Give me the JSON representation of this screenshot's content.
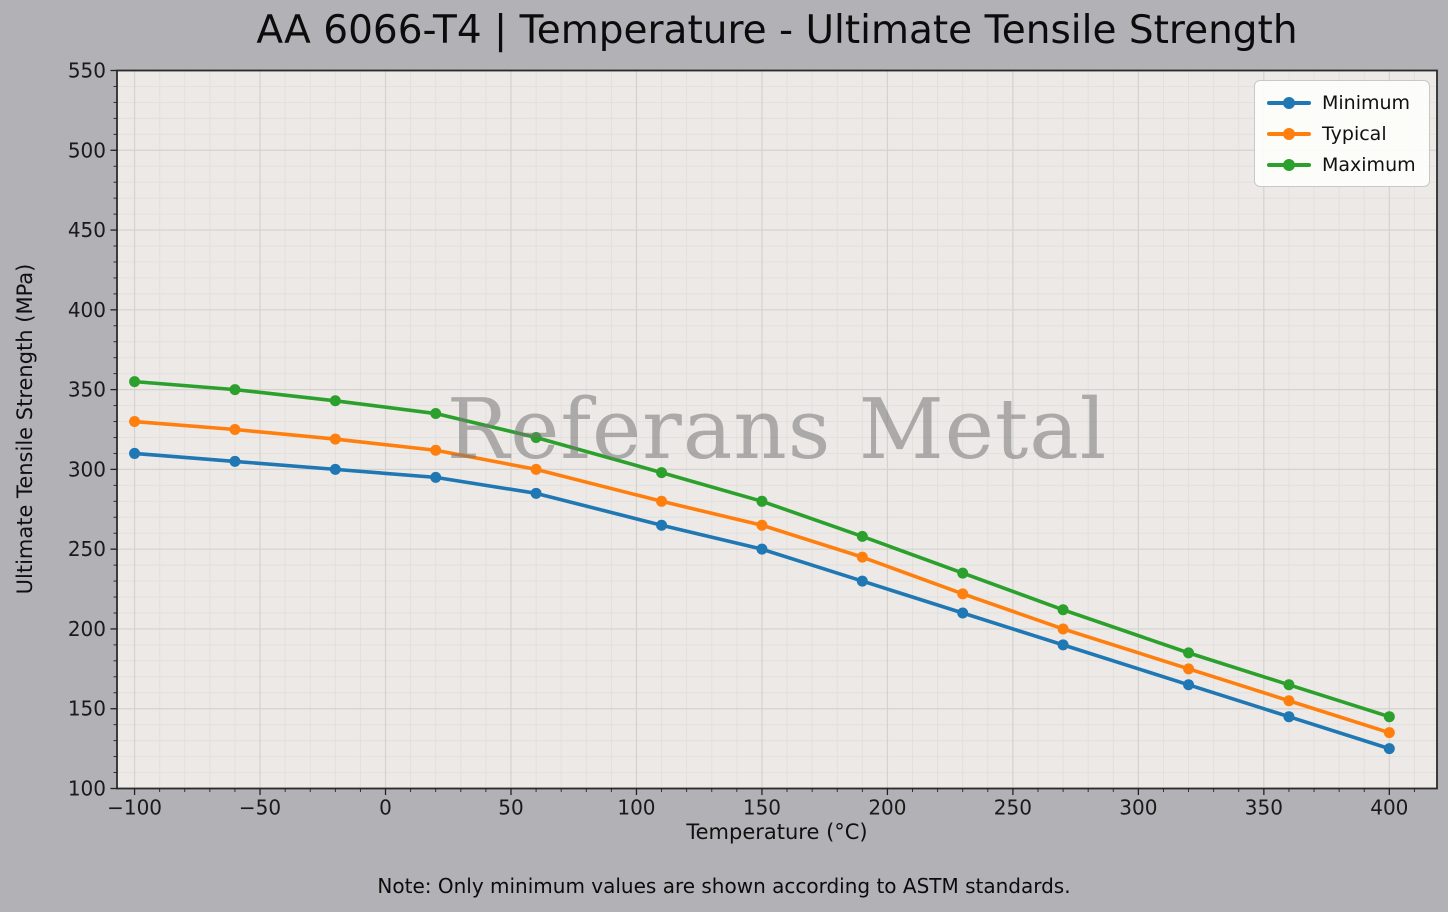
{
  "watermark": {
    "text": "Referans Metal"
  },
  "note": {
    "text": "Note: Only minimum values are shown according to ASTM standards."
  },
  "colors": {
    "figure_bg": "#b2b2b6",
    "plot_bg": "#ece9e6",
    "grid_major": "#d5d2cf",
    "grid_minor": "#e2dfdc",
    "spine": "#2b2b2b",
    "tick": "#222222",
    "tick_text": "#1a1a1a",
    "watermark_text": "#767676",
    "legend_bg": "#fdfdfb",
    "legend_border": "#c8c8c8"
  },
  "chart_data": {
    "type": "line",
    "title": "AA 6066-T4 | Temperature - Ultimate Tensile Strength",
    "xlabel": "Temperature (°C)",
    "ylabel": "Ultimate Tensile Strength (MPa)",
    "x": [
      -100,
      -60,
      -20,
      20,
      60,
      110,
      150,
      190,
      230,
      270,
      320,
      360,
      400
    ],
    "series": [
      {
        "name": "Minimum",
        "color": "#1f77b4",
        "values": [
          310,
          305,
          300,
          295,
          285,
          265,
          250,
          230,
          210,
          190,
          165,
          145,
          125
        ]
      },
      {
        "name": "Typical",
        "color": "#ff7f0e",
        "values": [
          330,
          325,
          319,
          312,
          300,
          280,
          265,
          245,
          222,
          200,
          175,
          155,
          135
        ]
      },
      {
        "name": "Maximum",
        "color": "#2ca02c",
        "values": [
          355,
          350,
          343,
          335,
          320,
          298,
          280,
          258,
          235,
          212,
          185,
          165,
          145
        ]
      }
    ],
    "legend": [
      "Minimum",
      "Typical",
      "Maximum"
    ],
    "legend_position": "upper right",
    "xticks": [
      -100,
      -50,
      0,
      50,
      100,
      150,
      200,
      250,
      300,
      350,
      400
    ],
    "yticks": [
      100,
      150,
      200,
      250,
      300,
      350,
      400,
      450,
      500,
      550
    ],
    "xlim": [
      -107,
      419
    ],
    "ylim": [
      100,
      550
    ],
    "grid": true,
    "minor_tick_step": 10
  }
}
